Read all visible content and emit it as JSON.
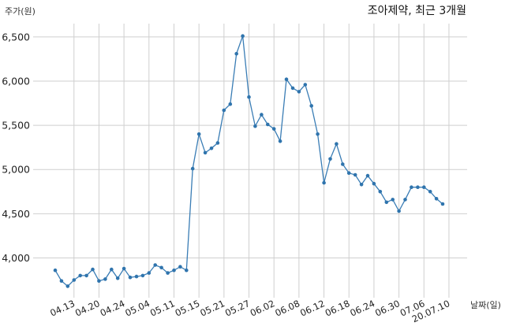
{
  "chart_data": {
    "type": "line",
    "title": "조아제약, 최근 3개월",
    "ylabel": "주가(원)",
    "xlabel": "날짜(일)",
    "ylim": [
      3550,
      6650
    ],
    "yticks": [
      4000,
      4500,
      5000,
      5500,
      6000,
      6500
    ],
    "ytick_labels": [
      "4,000",
      "4,500",
      "5,000",
      "5,500",
      "6,000",
      "6,500"
    ],
    "xtick_labels": [
      "04.13",
      "04.20",
      "04.24",
      "05.04",
      "05.11",
      "05.15",
      "05.21",
      "05.27",
      "06.02",
      "06.08",
      "06.12",
      "06.18",
      "06.24",
      "06.30",
      "07.06",
      "20.07.10"
    ],
    "xtick_index": [
      3,
      7,
      11,
      15,
      19,
      23,
      27,
      31,
      35,
      39,
      43,
      47,
      51,
      55,
      59,
      63
    ],
    "grid": true,
    "series": [
      {
        "color": "#2f74ad",
        "values": [
          3860,
          3740,
          3680,
          3750,
          3800,
          3800,
          3870,
          3740,
          3760,
          3870,
          3770,
          3880,
          3780,
          3790,
          3800,
          3830,
          3920,
          3890,
          3830,
          3860,
          3900,
          3860,
          5010,
          5400,
          5190,
          5240,
          5300,
          5670,
          5740,
          6310,
          6510,
          5820,
          5490,
          5620,
          5510,
          5460,
          5320,
          6020,
          5920,
          5880,
          5960,
          5720,
          5400,
          4850,
          5120,
          5290,
          5060,
          4960,
          4940,
          4830,
          4930,
          4840,
          4750,
          4630,
          4660,
          4530,
          4660,
          4800,
          4800,
          4800,
          4750,
          4670,
          4610
        ]
      }
    ]
  }
}
